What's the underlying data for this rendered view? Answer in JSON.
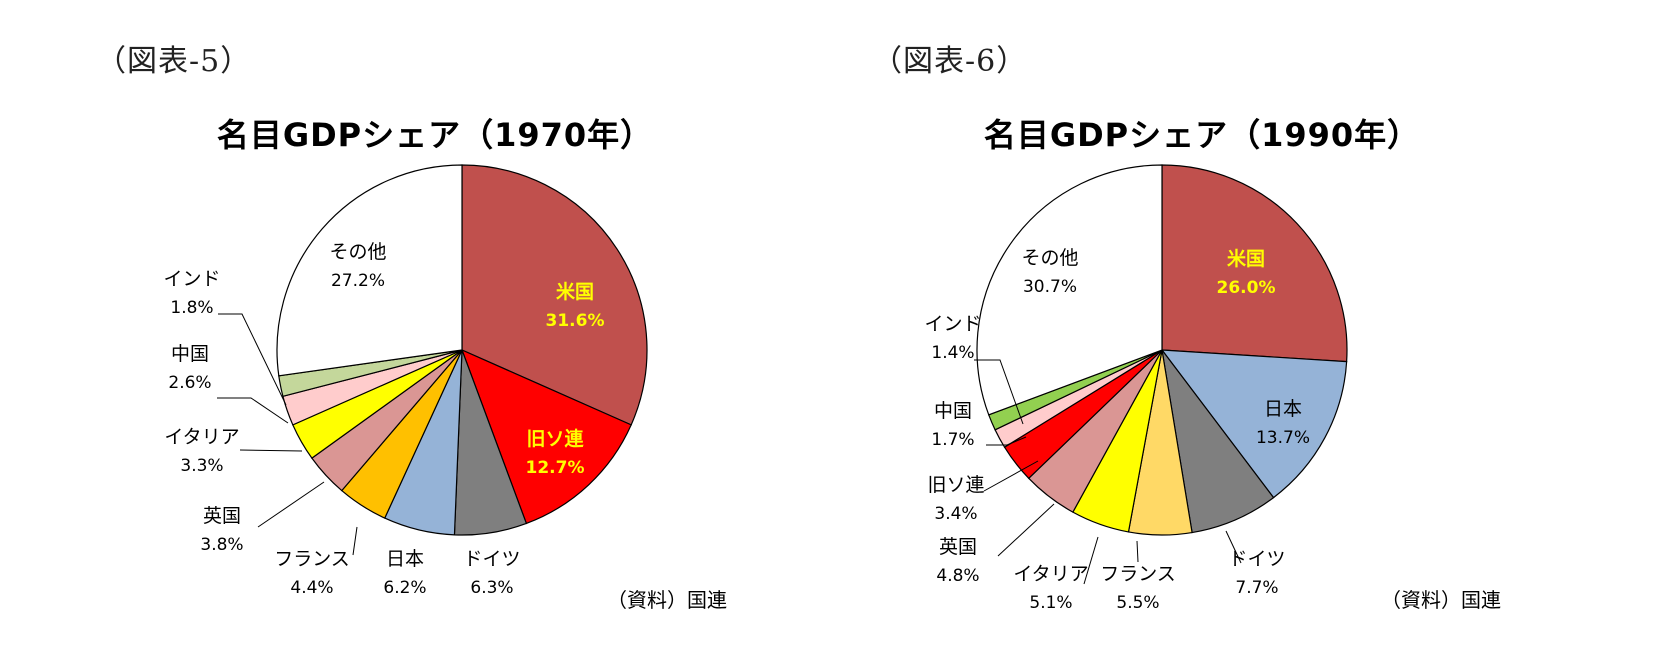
{
  "figures": [
    {
      "label": "（図表-5）",
      "source": "（資料）国連"
    },
    {
      "label": "（図表-6）",
      "source": "（資料）国連"
    }
  ],
  "chart_data": [
    {
      "type": "pie",
      "title": "名目GDPシェア（1970年）",
      "slices": [
        {
          "name": "米国",
          "value": 31.6,
          "value_label": "31.6%",
          "color": "#c0504d",
          "label_color": "#ffff00",
          "bold": true
        },
        {
          "name": "旧ソ連",
          "value": 12.7,
          "value_label": "12.7%",
          "color": "#ff0000",
          "label_color": "#ffff00",
          "bold": true
        },
        {
          "name": "ドイツ",
          "value": 6.3,
          "value_label": "6.3%",
          "color": "#7f7f7f"
        },
        {
          "name": "日本",
          "value": 6.2,
          "value_label": "6.2%",
          "color": "#95b3d7"
        },
        {
          "name": "フランス",
          "value": 4.4,
          "value_label": "4.4%",
          "color": "#ffc000"
        },
        {
          "name": "英国",
          "value": 3.8,
          "value_label": "3.8%",
          "color": "#da9694"
        },
        {
          "name": "イタリア",
          "value": 3.3,
          "value_label": "3.3%",
          "color": "#ffff00"
        },
        {
          "name": "中国",
          "value": 2.6,
          "value_label": "2.6%",
          "color": "#ffcccc"
        },
        {
          "name": "インド",
          "value": 1.8,
          "value_label": "1.8%",
          "color": "#c4d79b"
        },
        {
          "name": "その他",
          "value": 27.2,
          "value_label": "27.2%",
          "color": "#ffffff"
        }
      ]
    },
    {
      "type": "pie",
      "title": "名目GDPシェア（1990年）",
      "slices": [
        {
          "name": "米国",
          "value": 26.0,
          "value_label": "26.0%",
          "color": "#c0504d",
          "label_color": "#ffff00",
          "bold": true
        },
        {
          "name": "日本",
          "value": 13.7,
          "value_label": "13.7%",
          "color": "#95b3d7"
        },
        {
          "name": "ドイツ",
          "value": 7.7,
          "value_label": "7.7%",
          "color": "#7f7f7f"
        },
        {
          "name": "フランス",
          "value": 5.5,
          "value_label": "5.5%",
          "color": "#ffd966"
        },
        {
          "name": "イタリア",
          "value": 5.1,
          "value_label": "5.1%",
          "color": "#ffff00"
        },
        {
          "name": "英国",
          "value": 4.8,
          "value_label": "4.8%",
          "color": "#da9694"
        },
        {
          "name": "旧ソ連",
          "value": 3.4,
          "value_label": "3.4%",
          "color": "#ff0000"
        },
        {
          "name": "中国",
          "value": 1.7,
          "value_label": "1.7%",
          "color": "#ffcccc"
        },
        {
          "name": "インド",
          "value": 1.4,
          "value_label": "1.4%",
          "color": "#92d050"
        },
        {
          "name": "その他",
          "value": 30.7,
          "value_label": "30.7%",
          "color": "#ffffff"
        }
      ]
    }
  ]
}
